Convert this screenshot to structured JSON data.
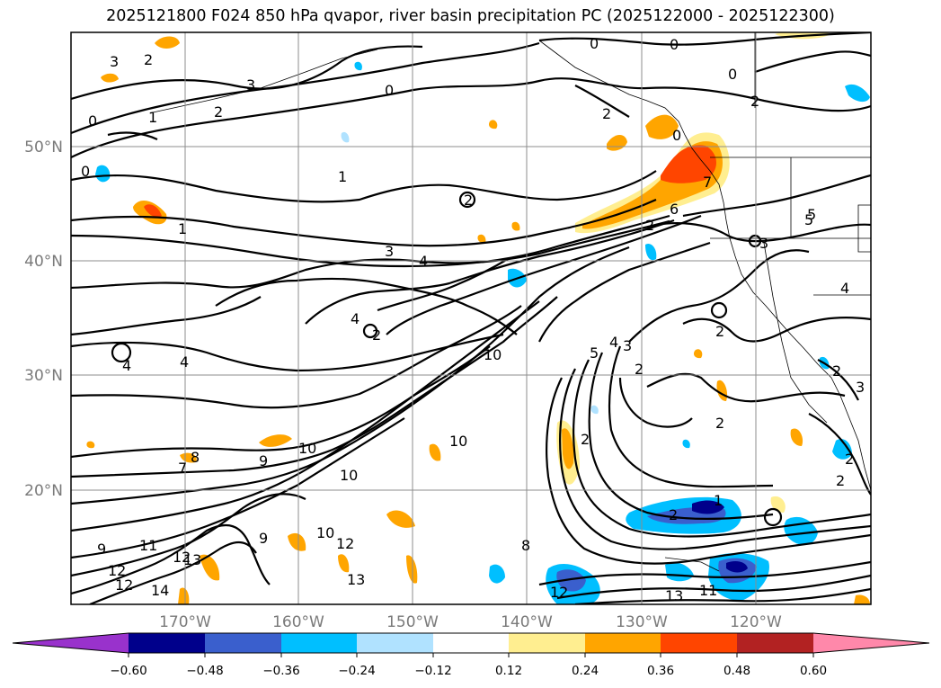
{
  "title": "2025121800 F024 850 hPa qvapor, river basin precipitation PC (2025122000 - 2025122300)",
  "map": {
    "lat_labels": [
      "50°N",
      "40°N",
      "30°N",
      "20°N"
    ],
    "lon_labels": [
      "170°W",
      "160°W",
      "150°W",
      "140°W",
      "130°W",
      "120°W"
    ]
  },
  "colorbar": {
    "ticks": [
      "−0.60",
      "−0.48",
      "−0.36",
      "−0.24",
      "−0.12",
      "0.12",
      "0.24",
      "0.36",
      "0.48",
      "0.60"
    ],
    "colors": {
      "under": "#9932cc",
      "c1": "#00008b",
      "c2": "#3a5fcd",
      "c3": "#00bfff",
      "c4": "#b0e2ff",
      "c5": "#ffffff",
      "c6": "#ffee90",
      "c7": "#ffa500",
      "c8": "#ff4500",
      "c9": "#b22222",
      "over": "#ff88aa"
    }
  },
  "contour_labels": [
    "3",
    "2",
    "2",
    "3",
    "0",
    "0",
    "2",
    "2",
    "0",
    "1",
    "0",
    "0",
    "1",
    "1",
    "2",
    "2",
    "7",
    "6",
    "5",
    "4",
    "3",
    "4",
    "4",
    "2",
    "10",
    "10",
    "2",
    "5",
    "4",
    "3",
    "2",
    "2",
    "4",
    "4",
    "8",
    "7",
    "9",
    "10",
    "10",
    "9",
    "10",
    "12",
    "13",
    "8",
    "9",
    "11",
    "12",
    "12",
    "14",
    "12",
    "13",
    "11",
    "1",
    "2",
    "2",
    "13",
    "12",
    "2",
    "2",
    "5",
    "2",
    "3",
    "3",
    "0",
    "0"
  ]
}
